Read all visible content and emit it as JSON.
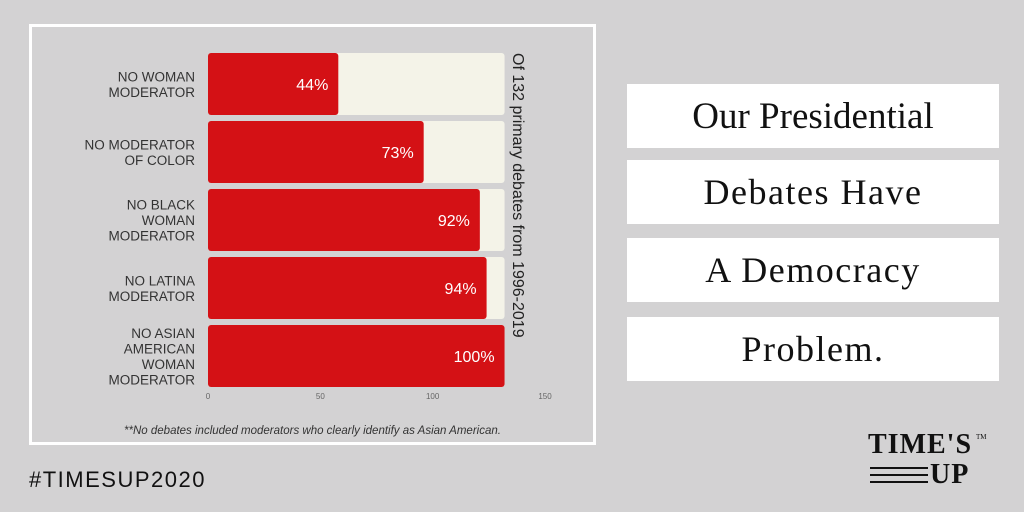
{
  "chart_data": {
    "type": "bar",
    "orientation": "horizontal",
    "categories": [
      [
        "NO WOMAN",
        "MODERATOR"
      ],
      [
        "NO MODERATOR",
        "OF COLOR"
      ],
      [
        "NO BLACK",
        "WOMAN",
        "MODERATOR"
      ],
      [
        "NO LATINA",
        "MODERATOR"
      ],
      [
        "NO ASIAN",
        "AMERICAN",
        "WOMAN",
        "MODERATOR"
      ]
    ],
    "values": [
      58,
      96,
      121,
      124,
      132
    ],
    "percent_labels": [
      "44%",
      "73%",
      "92%",
      "94%",
      "100%"
    ],
    "total": 132,
    "xlim": [
      0,
      150
    ],
    "xticks": [
      "0",
      "50",
      "100",
      "150"
    ],
    "right_label": "Of 132 primary debates from 1996-2019",
    "bar_color": "#d41115",
    "remainder_color": "#f4f3e8",
    "footnote": "**No debates included moderators who clearly identify as Asian American."
  },
  "hashtag": "#TIMESUP2020",
  "headline": [
    "Our Presidential",
    "Debates Have",
    "A Democracy",
    "Problem."
  ],
  "logo": {
    "top": "TIME'S",
    "bottom": "UP",
    "tm": "TM"
  }
}
